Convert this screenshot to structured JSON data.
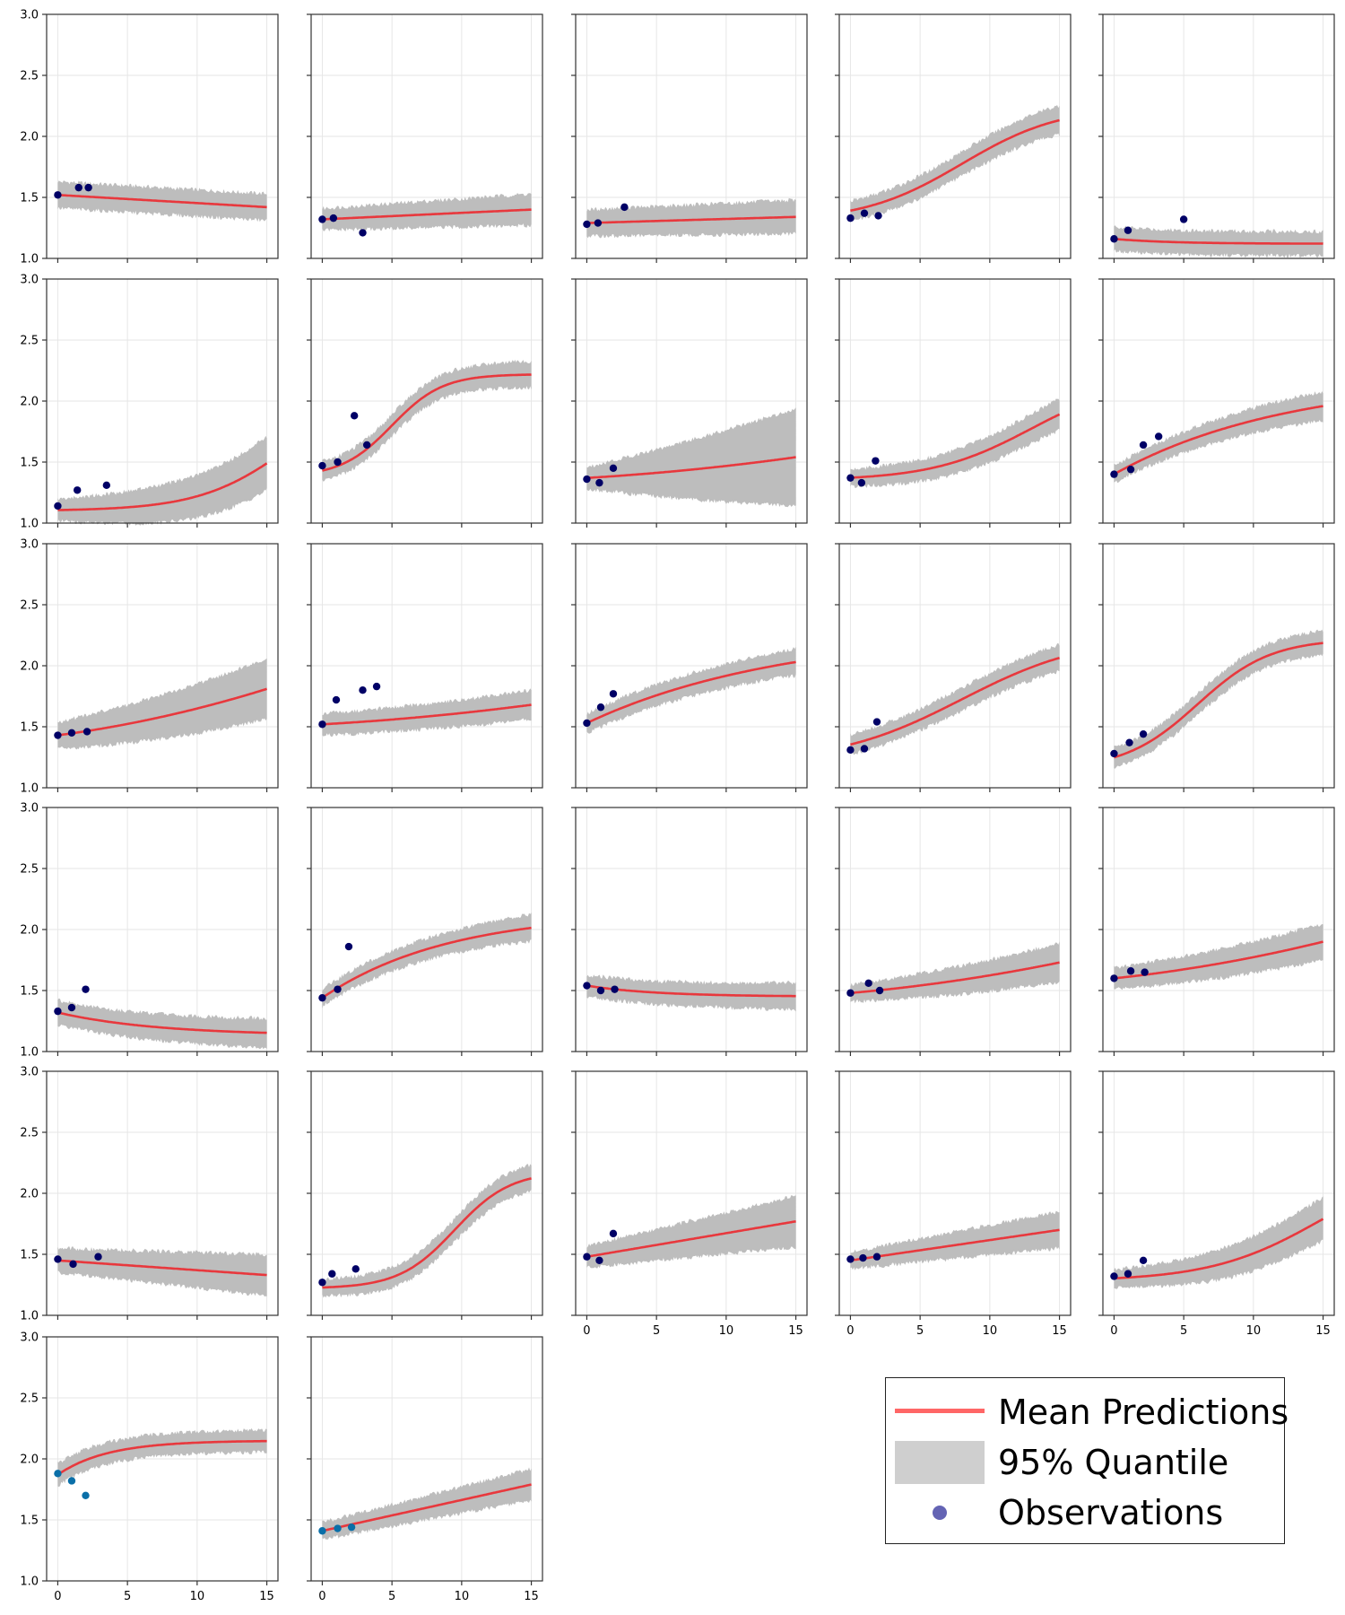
{
  "chart_data": {
    "type": "grid of line plots with bands",
    "layout": {
      "rows": 6,
      "cols": 5,
      "panels": 27
    },
    "xlim": [
      -0.8,
      15.8
    ],
    "ylim": [
      1.0,
      3.0
    ],
    "x_ticks": [
      0,
      5,
      10,
      15
    ],
    "y_ticks": [
      "1.0",
      "1.5",
      "2.0",
      "2.5",
      "3.0"
    ],
    "grid": true,
    "colors": {
      "mean": "#e8383d",
      "band": "#bdbdbd",
      "obs": "#000066",
      "obs_alt": "#0a6fa8",
      "grid": "#e6e6e6",
      "frame": "#333333"
    },
    "legend": {
      "placement": "bottom-right",
      "entries": [
        {
          "label": "Mean Predictions",
          "swatch": "line"
        },
        {
          "label": "95% Quantile",
          "swatch": "band"
        },
        {
          "label": "Observations",
          "swatch": "marker"
        }
      ]
    },
    "panels": [
      {
        "mean": {
          "kind": "lin",
          "a": 1.52,
          "b": 1.42
        },
        "band": [
          0.11,
          0.11
        ],
        "obs": [
          [
            0,
            1.52
          ],
          [
            1.5,
            1.58
          ],
          [
            2.2,
            1.58
          ]
        ]
      },
      {
        "mean": {
          "kind": "lin",
          "a": 1.32,
          "b": 1.4
        },
        "band": [
          0.09,
          0.13
        ],
        "obs": [
          [
            0,
            1.32
          ],
          [
            0.8,
            1.33
          ],
          [
            2.9,
            1.21
          ]
        ]
      },
      {
        "mean": {
          "kind": "lin",
          "a": 1.29,
          "b": 1.34
        },
        "band": [
          0.11,
          0.14
        ],
        "obs": [
          [
            0,
            1.28
          ],
          [
            0.8,
            1.29
          ],
          [
            2.7,
            1.42
          ]
        ]
      },
      {
        "mean": {
          "kind": "sig",
          "a": 1.3,
          "b": 2.25,
          "k": 0.28,
          "x0": 8
        },
        "band": [
          0.08,
          0.12
        ],
        "obs": [
          [
            0,
            1.33
          ],
          [
            1,
            1.37
          ],
          [
            2,
            1.35
          ]
        ]
      },
      {
        "mean": {
          "kind": "exp",
          "a": 1.16,
          "b": 1.12,
          "r": 0.25
        },
        "band": [
          0.1,
          0.1
        ],
        "obs": [
          [
            0,
            1.16
          ],
          [
            1,
            1.23
          ],
          [
            5,
            1.32
          ]
        ]
      },
      {
        "mean": {
          "kind": "sig",
          "a": 1.1,
          "b": 2.2,
          "k": 0.3,
          "x0": 17
        },
        "band": [
          0.09,
          0.22
        ],
        "obs": [
          [
            0,
            1.14
          ],
          [
            1.4,
            1.27
          ],
          [
            3.5,
            1.31
          ]
        ]
      },
      {
        "mean": {
          "kind": "sig",
          "a": 1.38,
          "b": 2.22,
          "k": 0.55,
          "x0": 5
        },
        "band": [
          0.08,
          0.11
        ],
        "obs": [
          [
            0,
            1.47
          ],
          [
            1.1,
            1.5
          ],
          [
            2.3,
            1.88
          ],
          [
            3.2,
            1.64
          ]
        ]
      },
      {
        "mean": {
          "kind": "lin2",
          "a": 1.37,
          "b": 1.54
        },
        "band": [
          0.09,
          0.4
        ],
        "obs": [
          [
            0,
            1.36
          ],
          [
            0.9,
            1.33
          ],
          [
            1.9,
            1.45
          ]
        ]
      },
      {
        "mean": {
          "kind": "sig",
          "a": 1.35,
          "b": 2.2,
          "k": 0.28,
          "x0": 13
        },
        "band": [
          0.07,
          0.13
        ],
        "obs": [
          [
            0,
            1.37
          ],
          [
            0.8,
            1.33
          ],
          [
            1.8,
            1.51
          ]
        ]
      },
      {
        "mean": {
          "kind": "sat",
          "a": 1.4,
          "b": 2.2,
          "r": 0.08
        },
        "band": [
          0.07,
          0.12
        ],
        "obs": [
          [
            0,
            1.4
          ],
          [
            1.2,
            1.44
          ],
          [
            2.1,
            1.64
          ],
          [
            3.2,
            1.71
          ]
        ]
      },
      {
        "mean": {
          "kind": "lin2",
          "a": 1.43,
          "b": 1.81
        },
        "band": [
          0.11,
          0.25
        ],
        "obs": [
          [
            0,
            1.43
          ],
          [
            1,
            1.45
          ],
          [
            2.1,
            1.46
          ]
        ]
      },
      {
        "mean": {
          "kind": "lin2",
          "a": 1.52,
          "b": 1.68
        },
        "band": [
          0.09,
          0.12
        ],
        "obs": [
          [
            0,
            1.52
          ],
          [
            1,
            1.72
          ],
          [
            2.9,
            1.8
          ],
          [
            3.9,
            1.83
          ]
        ]
      },
      {
        "mean": {
          "kind": "sat",
          "a": 1.53,
          "b": 2.3,
          "r": 0.07
        },
        "band": [
          0.08,
          0.11
        ],
        "obs": [
          [
            0,
            1.53
          ],
          [
            1,
            1.66
          ],
          [
            1.9,
            1.77
          ]
        ]
      },
      {
        "mean": {
          "kind": "sig",
          "a": 1.2,
          "b": 2.25,
          "k": 0.22,
          "x0": 8
        },
        "band": [
          0.08,
          0.11
        ],
        "obs": [
          [
            0,
            1.31
          ],
          [
            1,
            1.32
          ],
          [
            1.9,
            1.54
          ]
        ]
      },
      {
        "mean": {
          "kind": "sig",
          "a": 1.15,
          "b": 2.22,
          "k": 0.38,
          "x0": 6
        },
        "band": [
          0.08,
          0.1
        ],
        "obs": [
          [
            0,
            1.28
          ],
          [
            1.1,
            1.37
          ],
          [
            2.1,
            1.44
          ]
        ]
      },
      {
        "mean": {
          "kind": "exp",
          "a": 1.32,
          "b": 1.13,
          "r": 0.14
        },
        "band": [
          0.1,
          0.12
        ],
        "obs": [
          [
            0,
            1.33
          ],
          [
            1,
            1.36
          ],
          [
            2,
            1.51
          ]
        ]
      },
      {
        "mean": {
          "kind": "sat",
          "a": 1.44,
          "b": 2.15,
          "r": 0.11
        },
        "band": [
          0.07,
          0.11
        ],
        "obs": [
          [
            0,
            1.44
          ],
          [
            1.1,
            1.51
          ],
          [
            1.9,
            1.86
          ]
        ]
      },
      {
        "mean": {
          "kind": "exp",
          "a": 1.54,
          "b": 1.45,
          "r": 0.2
        },
        "band": [
          0.09,
          0.11
        ],
        "obs": [
          [
            0,
            1.54
          ],
          [
            1,
            1.5
          ],
          [
            2,
            1.51
          ]
        ]
      },
      {
        "mean": {
          "kind": "lin2",
          "a": 1.48,
          "b": 1.73
        },
        "band": [
          0.07,
          0.16
        ],
        "obs": [
          [
            0,
            1.48
          ],
          [
            1.3,
            1.56
          ],
          [
            2.1,
            1.5
          ]
        ]
      },
      {
        "mean": {
          "kind": "lin2",
          "a": 1.6,
          "b": 1.9
        },
        "band": [
          0.09,
          0.15
        ],
        "obs": [
          [
            0,
            1.6
          ],
          [
            1.2,
            1.66
          ],
          [
            2.2,
            1.65
          ]
        ]
      },
      {
        "mean": {
          "kind": "lin",
          "a": 1.45,
          "b": 1.33
        },
        "band": [
          0.1,
          0.17
        ],
        "obs": [
          [
            0,
            1.46
          ],
          [
            1.1,
            1.42
          ],
          [
            2.9,
            1.48
          ]
        ]
      },
      {
        "mean": {
          "kind": "sig",
          "a": 1.22,
          "b": 2.18,
          "k": 0.5,
          "x0": 9.5
        },
        "band": [
          0.07,
          0.11
        ],
        "obs": [
          [
            0,
            1.27
          ],
          [
            0.7,
            1.34
          ],
          [
            2.4,
            1.38
          ]
        ]
      },
      {
        "mean": {
          "kind": "lin",
          "a": 1.48,
          "b": 1.77
        },
        "band": [
          0.09,
          0.21
        ],
        "obs": [
          [
            0,
            1.48
          ],
          [
            0.9,
            1.45
          ],
          [
            1.9,
            1.67
          ]
        ]
      },
      {
        "mean": {
          "kind": "lin",
          "a": 1.45,
          "b": 1.7
        },
        "band": [
          0.07,
          0.15
        ],
        "obs": [
          [
            0,
            1.46
          ],
          [
            0.9,
            1.47
          ],
          [
            1.9,
            1.48
          ]
        ]
      },
      {
        "mean": {
          "kind": "sig",
          "a": 1.28,
          "b": 2.3,
          "k": 0.25,
          "x0": 15
        },
        "band": [
          0.07,
          0.18
        ],
        "obs": [
          [
            0,
            1.32
          ],
          [
            1,
            1.34
          ],
          [
            2.1,
            1.45
          ]
        ]
      },
      {
        "mean": {
          "kind": "sat",
          "a": 1.87,
          "b": 2.15,
          "r": 0.28
        },
        "band": [
          0.09,
          0.09
        ],
        "obs_color": "alt",
        "obs": [
          [
            0,
            1.88
          ],
          [
            1,
            1.82
          ],
          [
            2,
            1.7
          ]
        ]
      },
      {
        "mean": {
          "kind": "lin",
          "a": 1.41,
          "b": 1.79
        },
        "band": [
          0.07,
          0.13
        ],
        "obs_color": "alt",
        "obs": [
          [
            0,
            1.41
          ],
          [
            1.1,
            1.43
          ],
          [
            2.1,
            1.44
          ]
        ]
      }
    ]
  }
}
